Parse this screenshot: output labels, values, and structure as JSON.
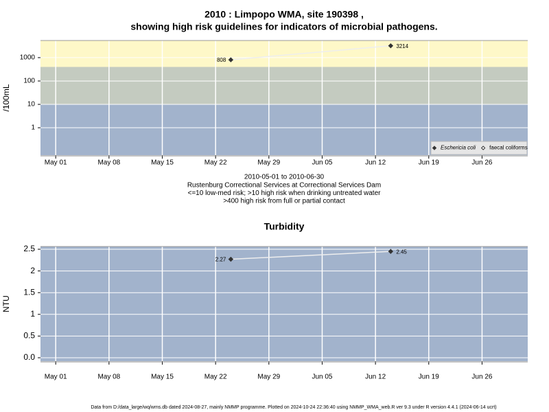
{
  "chart_data": [
    {
      "type": "line",
      "title": [
        "2010 : Limpopo WMA, site 190398 ,",
        "showing high risk guidelines for indicators of microbial pathogens."
      ],
      "ylabel": "/100mL",
      "ylog": true,
      "x": [
        "2010-05-24",
        "2010-06-14"
      ],
      "series": [
        {
          "name": "Eschericia coli",
          "color": "#333333",
          "marker": "filled-diamond",
          "values": [
            808,
            3214
          ]
        },
        {
          "name": "faecal coliforms",
          "color": "#333333",
          "marker": "open-diamond",
          "values": [
            null,
            null
          ]
        }
      ],
      "line_color": "#eeeeee",
      "bands": [
        {
          "from": 400,
          "to": 5400,
          "color": "#fef8c8"
        },
        {
          "from": 10,
          "to": 400,
          "color": "#c4cbc0"
        },
        {
          "from": 0.067,
          "to": 10,
          "color": "#a2b3cc"
        }
      ],
      "xlim": [
        "2010-04-29",
        "2010-07-02"
      ],
      "xticks": [
        {
          "value": "2010-05-01",
          "label": "May 01"
        },
        {
          "value": "2010-05-08",
          "label": "May 08"
        },
        {
          "value": "2010-05-15",
          "label": "May 15"
        },
        {
          "value": "2010-05-22",
          "label": "May 22"
        },
        {
          "value": "2010-05-29",
          "label": "May 29"
        },
        {
          "value": "2010-06-05",
          "label": "Jun 05"
        },
        {
          "value": "2010-06-12",
          "label": "Jun 12"
        },
        {
          "value": "2010-06-19",
          "label": "Jun 19"
        },
        {
          "value": "2010-06-26",
          "label": "Jun 26"
        }
      ],
      "ylim": [
        0.067,
        5400
      ],
      "yticks": [
        1,
        10,
        100,
        1000
      ],
      "grid": true,
      "legend": "bottom-right",
      "notes": [
        "2010-05-01 to 2010-06-30",
        "Rustenburg Correctional Services at Correctional Services Dam",
        "<=10 low-med risk; >10 high risk when drinking untreated water",
        ">400 high risk from full or partial contact"
      ]
    },
    {
      "type": "line",
      "title": [
        "Turbidity"
      ],
      "ylabel": "NTU",
      "ylog": false,
      "x": [
        "2010-05-24",
        "2010-06-14"
      ],
      "values": [
        2.27,
        2.45
      ],
      "color": "#333333",
      "line_color": "#eeeeee",
      "background": "#a2b3cc",
      "xlim": [
        "2010-04-29",
        "2010-07-02"
      ],
      "xticks": [
        {
          "value": "2010-05-01",
          "label": "May 01"
        },
        {
          "value": "2010-05-08",
          "label": "May 08"
        },
        {
          "value": "2010-05-15",
          "label": "May 15"
        },
        {
          "value": "2010-05-22",
          "label": "May 22"
        },
        {
          "value": "2010-05-29",
          "label": "May 29"
        },
        {
          "value": "2010-06-05",
          "label": "Jun 05"
        },
        {
          "value": "2010-06-12",
          "label": "Jun 12"
        },
        {
          "value": "2010-06-19",
          "label": "Jun 19"
        },
        {
          "value": "2010-06-26",
          "label": "Jun 26"
        }
      ],
      "ylim": [
        -0.079,
        2.563
      ],
      "yticks": [
        {
          "value": 0,
          "label": "0.0"
        },
        0.5,
        1,
        1.5,
        2,
        2.5
      ],
      "grid": true
    }
  ],
  "footer": "Data from D:/data_large/wq/wms.db dated 2024-08-27, mainly NMMP programme. Plotted on 2024-10-24 22:36:40 using NMMP_WMA_web.R ver 9.3 under R version 4.4.1 (2024-06-14 ucrt)"
}
